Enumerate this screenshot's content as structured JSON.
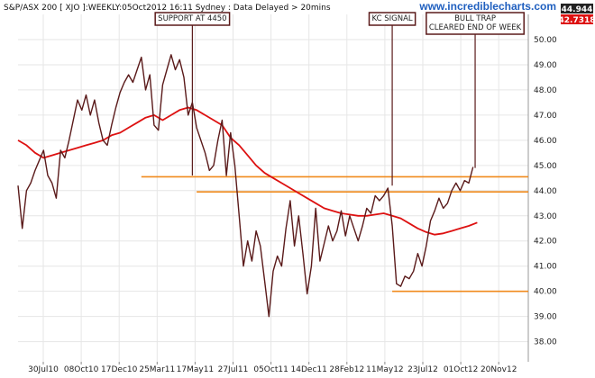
{
  "header": {
    "text": "S&P/ASX 200 [ XJO ]:WEEKLY:05Oct2012 16:11 Sydney : Data Delayed > 20mins",
    "site": "www.incrediblecharts.com"
  },
  "price_badges": [
    {
      "text": "44.944",
      "color": "#222222"
    },
    {
      "text": "42.7318",
      "color": "#dd1111"
    }
  ],
  "colors": {
    "price_line": "#5a1a1a",
    "ma_line": "#dd1111",
    "level_line": "#f08a1c",
    "grid": "#e6e6e6",
    "annotation": "#5a1a1a"
  },
  "chart_data": {
    "type": "line",
    "x_axis": {
      "ticks": [
        "30Jul10",
        "08Oct10",
        "17Dec10",
        "25Mar11",
        "17May11",
        "27Jul11",
        "05Oct11",
        "14Dec11",
        "28Feb12",
        "11May12",
        "23Jul12",
        "01Oct12",
        "20Nov12"
      ],
      "range": [
        0,
        120
      ]
    },
    "y_axis": {
      "ticks": [
        "38.00",
        "39.00",
        "40.00",
        "41.00",
        "42.00",
        "43.00",
        "44.00",
        "45.00",
        "46.00",
        "47.00",
        "48.00",
        "49.00",
        "50.00"
      ],
      "range": [
        37.2,
        51.0
      ],
      "position": "right",
      "scale": "price (hundreds)"
    },
    "grid": true,
    "series": [
      {
        "kind": "price",
        "x": [
          0,
          1,
          2,
          3,
          4,
          5,
          6,
          7,
          8,
          9,
          10,
          11,
          12,
          13,
          14,
          15,
          16,
          17,
          18,
          19,
          20,
          21,
          22,
          23,
          24,
          25,
          26,
          27,
          28,
          29,
          30,
          31,
          32,
          33,
          34,
          35,
          36,
          37,
          38,
          39,
          40,
          41,
          42,
          43,
          44,
          45,
          46,
          47,
          48,
          49,
          50,
          51,
          52,
          53,
          54,
          55,
          56,
          57,
          58,
          59,
          60,
          61,
          62,
          63,
          64,
          65,
          66,
          67,
          68,
          69,
          70,
          71,
          72,
          73,
          74,
          75,
          76,
          77,
          78,
          79,
          80,
          81,
          82,
          83,
          84,
          85,
          86,
          87,
          88,
          89,
          90,
          91,
          92,
          93,
          94,
          95,
          96,
          97,
          98,
          99,
          100,
          101,
          102,
          103,
          104,
          105,
          106,
          107
        ],
        "values": [
          44.2,
          42.5,
          44.0,
          44.3,
          44.8,
          45.2,
          45.6,
          44.6,
          44.3,
          43.7,
          45.6,
          45.3,
          46.0,
          46.8,
          47.6,
          47.2,
          47.8,
          47.0,
          47.6,
          46.7,
          46.0,
          45.8,
          46.6,
          47.3,
          47.9,
          48.3,
          48.6,
          48.3,
          48.8,
          49.3,
          48.0,
          48.6,
          46.6,
          46.4,
          48.2,
          48.8,
          49.4,
          48.8,
          49.2,
          48.5,
          47.0,
          47.5,
          46.5,
          46.0,
          45.5,
          44.8,
          45.0,
          46.0,
          46.8,
          44.6,
          46.3,
          45.0,
          43.0,
          41.0,
          42.0,
          41.2,
          42.4,
          41.8,
          40.4,
          39.0,
          40.8,
          41.4,
          41.0,
          42.5,
          43.6,
          41.8,
          43.0,
          41.5,
          39.9,
          41.0,
          43.3,
          41.2,
          41.9,
          42.6,
          42.0,
          42.4,
          43.2,
          42.2,
          43.0,
          42.5,
          42.0,
          42.6,
          43.3,
          43.1,
          43.8,
          43.6,
          43.8,
          44.1,
          42.6,
          40.3,
          40.2,
          40.6,
          40.5,
          40.8,
          41.5,
          41.0,
          41.8,
          42.8,
          43.2,
          43.7,
          43.3,
          43.5,
          44.0,
          44.3,
          44.0,
          44.4,
          44.3,
          44.94
        ]
      },
      {
        "kind": "moving_average",
        "x": [
          0,
          2,
          4,
          6,
          8,
          10,
          12,
          14,
          16,
          18,
          20,
          22,
          24,
          26,
          28,
          30,
          32,
          34,
          36,
          38,
          40,
          42,
          44,
          46,
          48,
          50,
          52,
          54,
          56,
          58,
          60,
          62,
          64,
          66,
          68,
          70,
          72,
          74,
          76,
          78,
          80,
          82,
          84,
          86,
          88,
          90,
          92,
          94,
          96,
          98,
          100,
          102,
          104,
          106,
          108
        ],
        "values": [
          46.0,
          45.8,
          45.5,
          45.3,
          45.4,
          45.5,
          45.6,
          45.7,
          45.8,
          45.9,
          46.0,
          46.2,
          46.3,
          46.5,
          46.7,
          46.9,
          47.0,
          46.8,
          47.0,
          47.2,
          47.3,
          47.2,
          47.0,
          46.8,
          46.6,
          46.1,
          45.8,
          45.4,
          45.0,
          44.7,
          44.5,
          44.3,
          44.1,
          43.9,
          43.7,
          43.5,
          43.3,
          43.2,
          43.1,
          43.05,
          43.0,
          43.0,
          43.05,
          43.1,
          43.0,
          42.9,
          42.7,
          42.5,
          42.35,
          42.25,
          42.3,
          42.4,
          42.5,
          42.6,
          42.73
        ]
      }
    ],
    "levels": [
      {
        "y": 44.55,
        "x_start": 29,
        "x_end": 120
      },
      {
        "y": 43.95,
        "x_start": 42,
        "x_end": 120
      },
      {
        "y": 40.0,
        "x_start": 88,
        "x_end": 120
      }
    ],
    "annotations": [
      {
        "lines": [
          "SUPPORT AT 4450"
        ],
        "x": 41,
        "y": 44.6
      },
      {
        "lines": [
          "KC SIGNAL"
        ],
        "x": 88,
        "y": 44.2
      },
      {
        "lines": [
          "BULL TRAP",
          "CLEARED END OF WEEK"
        ],
        "x": 107.5,
        "y": 44.9
      }
    ]
  }
}
